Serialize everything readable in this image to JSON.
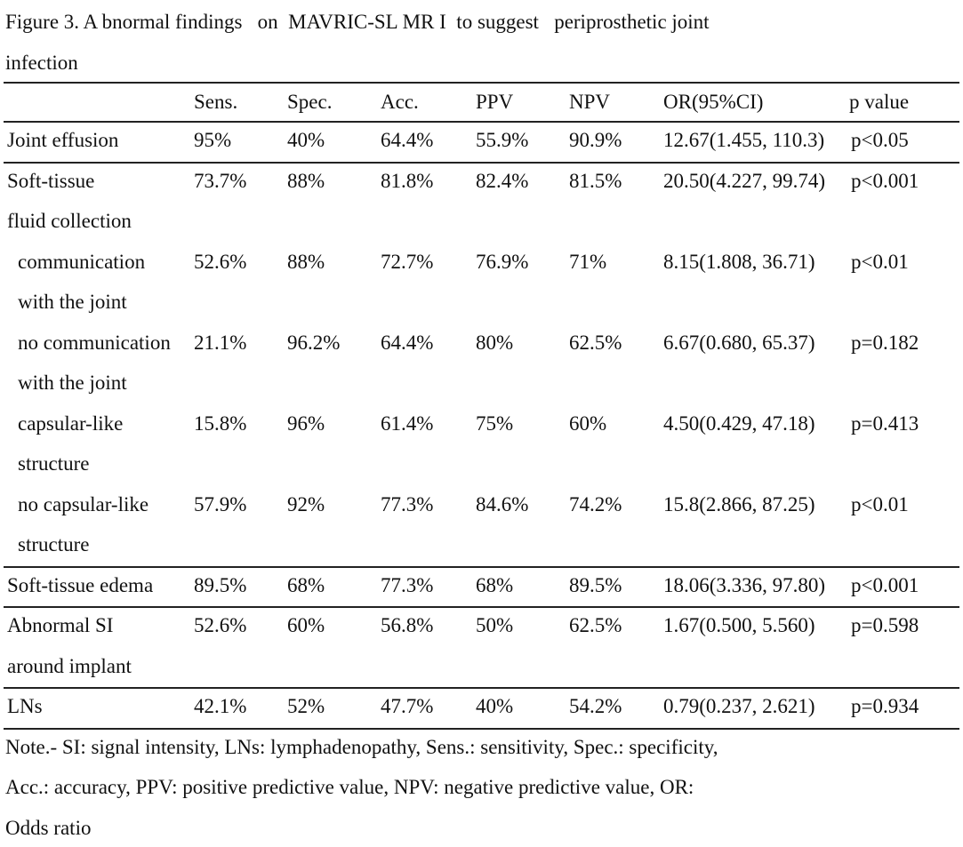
{
  "title": [
    "Figure 3. A bnormal findings   on  MAVRIC-SL MR I  to suggest   periprosthetic joint",
    "infection"
  ],
  "table": {
    "columns": [
      "",
      "Sens.",
      "Spec.",
      "Acc.",
      "PPV",
      "NPV",
      "OR(95%CI)",
      "p value"
    ],
    "rows": [
      {
        "label": [
          "Joint effusion"
        ],
        "cells": [
          "95%",
          "40%",
          "64.4%",
          "55.9%",
          "90.9%",
          "12.67(1.455, 110.3)",
          "p<0.05"
        ]
      },
      {
        "label": [
          "Soft-tissue",
          "fluid collection"
        ],
        "cells": [
          "73.7%",
          "88%",
          "81.8%",
          "82.4%",
          "81.5%",
          "20.50(4.227, 99.74)",
          "p<0.001"
        ],
        "subrows": [
          {
            "label": [
              "communication",
              "with the joint"
            ],
            "cells": [
              "52.6%",
              "88%",
              "72.7%",
              "76.9%",
              "71%",
              "8.15(1.808, 36.71)",
              "p<0.01"
            ]
          },
          {
            "label": [
              "no communication",
              "with the joint"
            ],
            "cells": [
              "21.1%",
              "96.2%",
              "64.4%",
              "80%",
              "62.5%",
              "6.67(0.680, 65.37)",
              "p=0.182"
            ]
          },
          {
            "label": [
              "capsular-like",
              "structure"
            ],
            "cells": [
              "15.8%",
              "96%",
              "61.4%",
              "75%",
              "60%",
              "4.50(0.429, 47.18)",
              "p=0.413"
            ]
          },
          {
            "label": [
              "no capsular-like",
              "structure"
            ],
            "cells": [
              "57.9%",
              "92%",
              "77.3%",
              "84.6%",
              "74.2%",
              "15.8(2.866, 87.25)",
              "p<0.01"
            ]
          }
        ]
      },
      {
        "label": [
          "Soft-tissue edema"
        ],
        "cells": [
          "89.5%",
          "68%",
          "77.3%",
          "68%",
          "89.5%",
          "18.06(3.336, 97.80)",
          "p<0.001"
        ]
      },
      {
        "label": [
          "Abnormal SI",
          "around implant"
        ],
        "cells": [
          "52.6%",
          "60%",
          "56.8%",
          "50%",
          "62.5%",
          "1.67(0.500, 5.560)",
          "p=0.598"
        ]
      },
      {
        "label": [
          "LNs"
        ],
        "cells": [
          "42.1%",
          "52%",
          "47.7%",
          "40%",
          "54.2%",
          "0.79(0.237, 2.621)",
          "p=0.934"
        ]
      }
    ]
  },
  "note": [
    "Note.- SI: signal intensity, LNs: lymphadenopathy, Sens.: sensitivity, Spec.: specificity,",
    "Acc.: accuracy, PPV: positive predictive value, NPV: negative predictive value, OR:",
    "Odds ratio"
  ]
}
